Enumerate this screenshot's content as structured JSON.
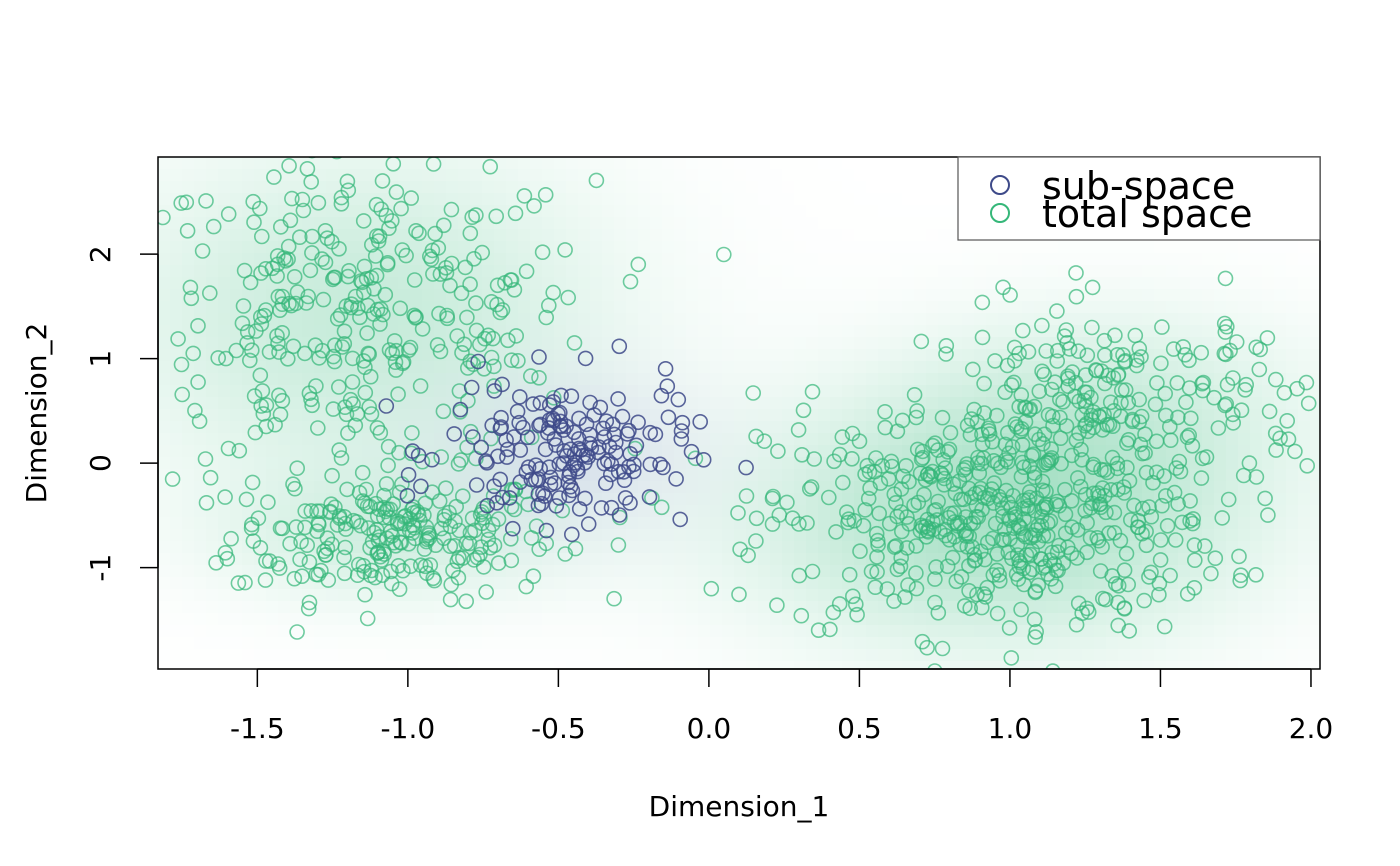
{
  "chart_data": {
    "type": "scatter",
    "xlabel": "Dimension_1",
    "ylabel": "Dimension_2",
    "xlim": [
      -1.83,
      2.03
    ],
    "ylim": [
      -1.97,
      2.93
    ],
    "x_ticks": [
      -1.5,
      -1.0,
      -0.5,
      0.0,
      0.5,
      1.0,
      1.5,
      2.0
    ],
    "x_tick_labels": [
      "-1.5",
      "-1.0",
      "-0.5",
      "0.0",
      "0.5",
      "1.0",
      "1.5",
      "2.0"
    ],
    "y_ticks": [
      -1,
      0,
      1,
      2
    ],
    "y_tick_labels": [
      "-1",
      "0",
      "1",
      "2"
    ],
    "grid": false,
    "background": "2D kernel density shading (green for total space, purple for sub-space)",
    "legend_position": "top-right",
    "series": [
      {
        "name": "sub-space",
        "color": "#3E4A89",
        "marker": "open-circle",
        "clusters": [
          {
            "center": [
              -0.47,
              0.1
            ],
            "spread": [
              0.2,
              0.35
            ],
            "n": 175
          }
        ]
      },
      {
        "name": "total space",
        "color": "#35B779",
        "marker": "open-circle",
        "clusters": [
          {
            "center": [
              -1.05,
              -0.7
            ],
            "spread": [
              0.27,
              0.3
            ],
            "n": 230
          },
          {
            "center": [
              -1.15,
              1.4
            ],
            "spread": [
              0.38,
              0.75
            ],
            "n": 340
          },
          {
            "center": [
              0.95,
              -0.55
            ],
            "spread": [
              0.38,
              0.55
            ],
            "n": 490
          },
          {
            "center": [
              1.35,
              0.6
            ],
            "spread": [
              0.32,
              0.45
            ],
            "n": 210
          }
        ]
      }
    ]
  }
}
